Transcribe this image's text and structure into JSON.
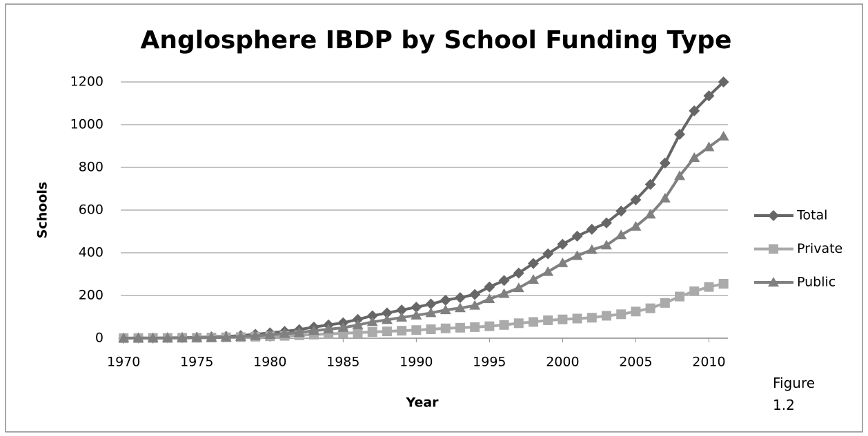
{
  "chart_data": {
    "type": "line",
    "title": "Anglosphere IBDP by School Funding Type",
    "xlabel": "Year",
    "ylabel": "Schools",
    "annotation": "Figure 1.2",
    "x": [
      1970,
      1971,
      1972,
      1973,
      1974,
      1975,
      1976,
      1977,
      1978,
      1979,
      1980,
      1981,
      1982,
      1983,
      1984,
      1985,
      1986,
      1987,
      1988,
      1989,
      1990,
      1991,
      1992,
      1993,
      1994,
      1995,
      1996,
      1997,
      1998,
      1999,
      2000,
      2001,
      2002,
      2003,
      2004,
      2005,
      2006,
      2007,
      2008,
      2009,
      2010,
      2011
    ],
    "series": [
      {
        "name": "Total",
        "color": "#666666",
        "marker": "diamond",
        "values": [
          0,
          1,
          1,
          2,
          3,
          4,
          6,
          8,
          12,
          18,
          25,
          32,
          40,
          52,
          62,
          72,
          88,
          105,
          118,
          132,
          145,
          160,
          178,
          190,
          205,
          240,
          270,
          305,
          350,
          395,
          440,
          478,
          510,
          540,
          595,
          648,
          720,
          820,
          955,
          1065,
          1135,
          1200
        ]
      },
      {
        "name": "Private",
        "color": "#aaaaaa",
        "marker": "square",
        "values": [
          0,
          0,
          1,
          1,
          2,
          2,
          3,
          4,
          5,
          7,
          9,
          11,
          14,
          17,
          20,
          23,
          26,
          29,
          32,
          35,
          38,
          42,
          46,
          49,
          52,
          56,
          62,
          70,
          76,
          84,
          88,
          92,
          96,
          105,
          112,
          125,
          140,
          165,
          195,
          220,
          240,
          255
        ]
      },
      {
        "name": "Public",
        "color": "#808080",
        "marker": "triangle",
        "values": [
          0,
          1,
          0,
          1,
          1,
          2,
          3,
          4,
          7,
          11,
          16,
          21,
          26,
          35,
          42,
          49,
          62,
          76,
          86,
          97,
          107,
          118,
          132,
          141,
          153,
          184,
          208,
          235,
          274,
          311,
          352,
          386,
          414,
          435,
          483,
          523,
          580,
          655,
          760,
          845,
          895,
          945
        ]
      }
    ],
    "xlim": [
      1969.8,
      2011.3
    ],
    "xticks": [
      1970,
      1975,
      1980,
      1985,
      1990,
      1995,
      2000,
      2005,
      2010
    ],
    "ylim": [
      0,
      1200
    ],
    "yticks": [
      0,
      200,
      400,
      600,
      800,
      1000,
      1200
    ],
    "grid": true,
    "legend": "right"
  }
}
